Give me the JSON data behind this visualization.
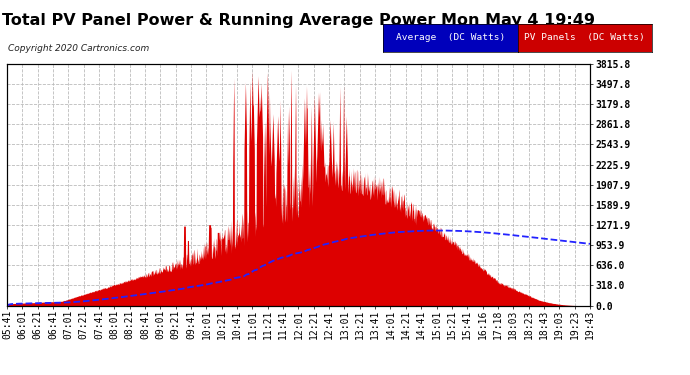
{
  "title": "Total PV Panel Power & Running Average Power Mon May 4 19:49",
  "copyright": "Copyright 2020 Cartronics.com",
  "ylabel_right_ticks": [
    0.0,
    318.0,
    636.0,
    953.9,
    1271.9,
    1589.9,
    1907.9,
    2225.9,
    2543.9,
    2861.8,
    3179.8,
    3497.8,
    3815.8
  ],
  "ymax": 3815.8,
  "legend_avg_label": "Average  (DC Watts)",
  "legend_pv_label": "PV Panels  (DC Watts)",
  "legend_avg_bg": "#0000bb",
  "legend_pv_bg": "#cc0000",
  "pv_color": "#dd0000",
  "avg_color": "#2222ff",
  "bg_color": "#ffffff",
  "plot_bg_color": "#ffffff",
  "grid_color": "#bbbbbb",
  "title_fontsize": 11.5,
  "tick_label_fontsize": 7,
  "x_tick_labels": [
    "05:41",
    "06:01",
    "06:21",
    "06:41",
    "07:01",
    "07:21",
    "07:41",
    "08:01",
    "08:21",
    "08:41",
    "09:01",
    "09:21",
    "09:41",
    "10:01",
    "10:21",
    "10:41",
    "11:01",
    "11:21",
    "11:41",
    "12:01",
    "12:21",
    "12:41",
    "13:01",
    "13:21",
    "13:41",
    "14:01",
    "14:21",
    "14:41",
    "15:01",
    "15:21",
    "15:41",
    "16:16",
    "17:18",
    "18:03",
    "18:23",
    "18:43",
    "19:03",
    "19:23",
    "19:43"
  ]
}
